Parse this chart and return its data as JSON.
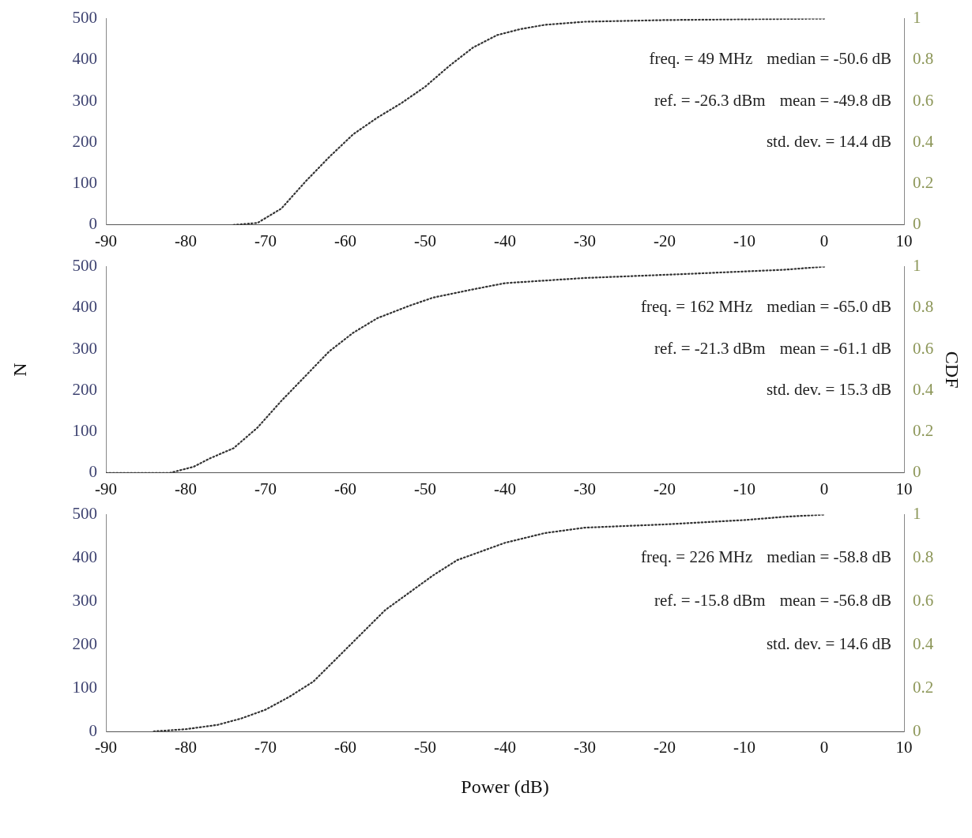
{
  "chart_data": [
    {
      "type": "line",
      "annotations": [
        "freq. = 49 MHz",
        "median = -50.6 dB",
        "ref. = -26.3 dBm",
        "mean = -49.8 dB",
        "std. dev. = 14.4 dB"
      ],
      "xlim": [
        -90,
        10
      ],
      "xticks": [
        -90,
        -80,
        -70,
        -60,
        -50,
        -40,
        -30,
        -20,
        -10,
        0,
        10
      ],
      "ylim": [
        0,
        500
      ],
      "yticks": [
        0,
        100,
        200,
        300,
        400,
        500
      ],
      "y2lim": [
        0,
        1
      ],
      "y2ticks": [
        0,
        0.2,
        0.4,
        0.6,
        0.8,
        1
      ],
      "grid": false,
      "legend": false,
      "marker": "none",
      "line_style": "dotted",
      "series": [
        {
          "color": "#333333",
          "axis": "y2",
          "x": [
            -74,
            -71,
            -68,
            -65,
            -62,
            -59,
            -56,
            -53,
            -50,
            -47,
            -44,
            -41,
            -38,
            -35,
            -30,
            -20,
            -10,
            0
          ],
          "values": [
            0,
            0.01,
            0.08,
            0.21,
            0.33,
            0.44,
            0.52,
            0.59,
            0.67,
            0.77,
            0.86,
            0.92,
            0.95,
            0.97,
            0.985,
            0.993,
            0.997,
            1
          ]
        }
      ]
    },
    {
      "type": "line",
      "ylabel": "N",
      "y2label": "CDF",
      "annotations": [
        "freq. = 162 MHz",
        "median = -65.0 dB",
        "ref. = -21.3 dBm",
        "mean = -61.1 dB",
        "std. dev. = 15.3 dB"
      ],
      "xlim": [
        -90,
        10
      ],
      "xticks": [
        -90,
        -80,
        -70,
        -60,
        -50,
        -40,
        -30,
        -20,
        -10,
        0,
        10
      ],
      "ylim": [
        0,
        500
      ],
      "yticks": [
        0,
        100,
        200,
        300,
        400,
        500
      ],
      "y2lim": [
        0,
        1
      ],
      "y2ticks": [
        0,
        0.2,
        0.4,
        0.6,
        0.8,
        1
      ],
      "grid": false,
      "legend": false,
      "marker": "none",
      "line_style": "dotted",
      "series": [
        {
          "color": "#333333",
          "axis": "y2",
          "x": [
            -90,
            -82,
            -79,
            -77,
            -74,
            -71,
            -68,
            -65,
            -62,
            -59,
            -56,
            -52,
            -49,
            -44,
            -40,
            -30,
            -17,
            -5,
            0
          ],
          "values": [
            0,
            0,
            0.03,
            0.07,
            0.12,
            0.22,
            0.35,
            0.47,
            0.59,
            0.68,
            0.75,
            0.81,
            0.85,
            0.89,
            0.92,
            0.945,
            0.965,
            0.985,
            1
          ]
        }
      ]
    },
    {
      "type": "line",
      "xlabel": "Power (dB)",
      "annotations": [
        "freq. = 226 MHz",
        "median = -58.8 dB",
        "ref. = -15.8 dBm",
        "mean = -56.8 dB",
        "std. dev. = 14.6 dB"
      ],
      "xlim": [
        -90,
        10
      ],
      "xticks": [
        -90,
        -80,
        -70,
        -60,
        -50,
        -40,
        -30,
        -20,
        -10,
        0,
        10
      ],
      "ylim": [
        0,
        500
      ],
      "yticks": [
        0,
        100,
        200,
        300,
        400,
        500
      ],
      "y2lim": [
        0,
        1
      ],
      "y2ticks": [
        0,
        0.2,
        0.4,
        0.6,
        0.8,
        1
      ],
      "grid": false,
      "legend": false,
      "marker": "none",
      "line_style": "dotted",
      "series": [
        {
          "color": "#333333",
          "axis": "y2",
          "x": [
            -84,
            -80,
            -76,
            -73,
            -70,
            -67,
            -64,
            -61,
            -58,
            -55,
            -52,
            -49,
            -46,
            -43,
            -40,
            -35,
            -30,
            -20,
            -10,
            -5,
            0
          ],
          "values": [
            0,
            0.01,
            0.03,
            0.06,
            0.1,
            0.16,
            0.23,
            0.34,
            0.45,
            0.56,
            0.64,
            0.72,
            0.79,
            0.83,
            0.87,
            0.915,
            0.94,
            0.955,
            0.975,
            0.99,
            1
          ]
        }
      ]
    }
  ]
}
